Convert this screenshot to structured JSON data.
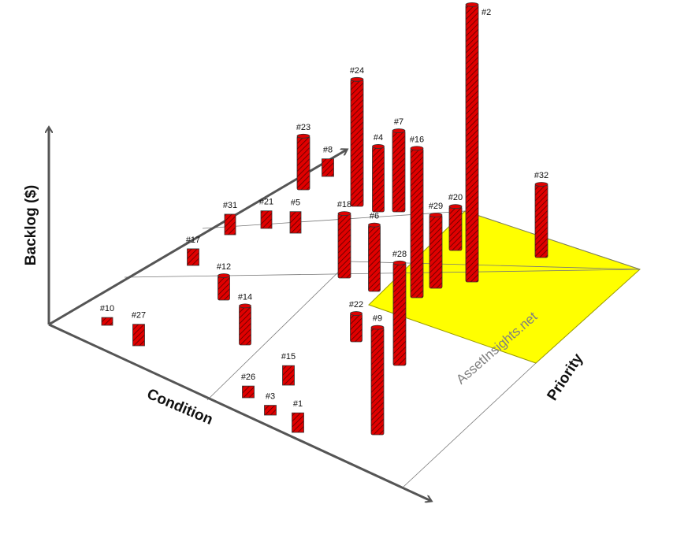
{
  "chart_data": {
    "type": "3d-bar",
    "xlabel": "Condition",
    "ylabel": "Priority",
    "zlabel": "Backlog ($)",
    "watermark": "AssetInsights.net",
    "bar_color": "#e00000",
    "highlight_color": "#ffff00",
    "axis_color": "#555555",
    "grid": true,
    "bars": [
      {
        "label": "#10",
        "value": 0.08
      },
      {
        "label": "#27",
        "value": 0.22
      },
      {
        "label": "#17",
        "value": 0.17
      },
      {
        "label": "#12",
        "value": 0.25
      },
      {
        "label": "#14",
        "value": 0.4
      },
      {
        "label": "#31",
        "value": 0.21
      },
      {
        "label": "#21",
        "value": 0.18
      },
      {
        "label": "#5",
        "value": 0.22
      },
      {
        "label": "#23",
        "value": 0.55
      },
      {
        "label": "#8",
        "value": 0.18
      },
      {
        "label": "#24",
        "value": 1.3
      },
      {
        "label": "#4",
        "value": 0.67
      },
      {
        "label": "#7",
        "value": 0.83
      },
      {
        "label": "#16",
        "value": 1.53
      },
      {
        "label": "#18",
        "value": 0.66
      },
      {
        "label": "#6",
        "value": 0.68
      },
      {
        "label": "#28",
        "value": 1.05
      },
      {
        "label": "#29",
        "value": 0.75
      },
      {
        "label": "#20",
        "value": 0.45
      },
      {
        "label": "#2",
        "value": 2.84
      },
      {
        "label": "#32",
        "value": 0.75
      },
      {
        "label": "#22",
        "value": 0.29
      },
      {
        "label": "#9",
        "value": 1.1
      },
      {
        "label": "#26",
        "value": 0.12
      },
      {
        "label": "#15",
        "value": 0.2
      },
      {
        "label": "#3",
        "value": 0.1
      },
      {
        "label": "#1",
        "value": 0.2
      }
    ]
  }
}
